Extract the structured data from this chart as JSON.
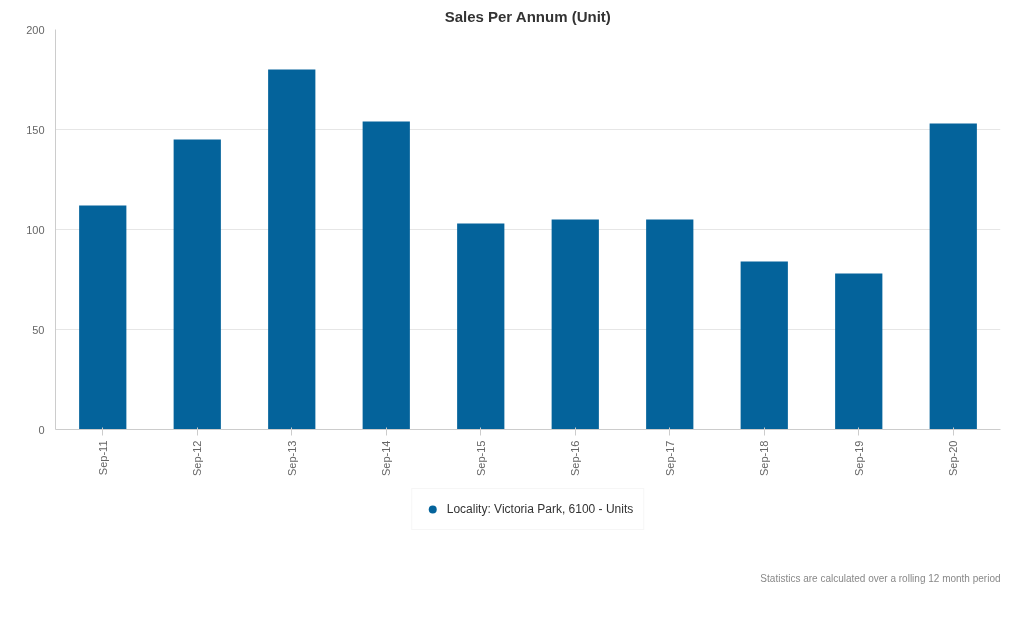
{
  "chart_data": {
    "type": "bar",
    "title": "Sales Per Annum (Unit)",
    "categories": [
      "Sep-11",
      "Sep-12",
      "Sep-13",
      "Sep-14",
      "Sep-15",
      "Sep-16",
      "Sep-17",
      "Sep-18",
      "Sep-19",
      "Sep-20"
    ],
    "series": [
      {
        "name": "Locality: Victoria Park, 6100 - Units",
        "color": "#04639b",
        "values": [
          112,
          145,
          180,
          154,
          103,
          105,
          105,
          84,
          78,
          153
        ]
      }
    ],
    "ylim": [
      0,
      200
    ],
    "yticks": [
      0,
      50,
      100,
      150,
      200
    ],
    "grid": "y",
    "legend": "bottom",
    "annotations": [
      "Statistics are calculated over a rolling 12 month period"
    ]
  }
}
